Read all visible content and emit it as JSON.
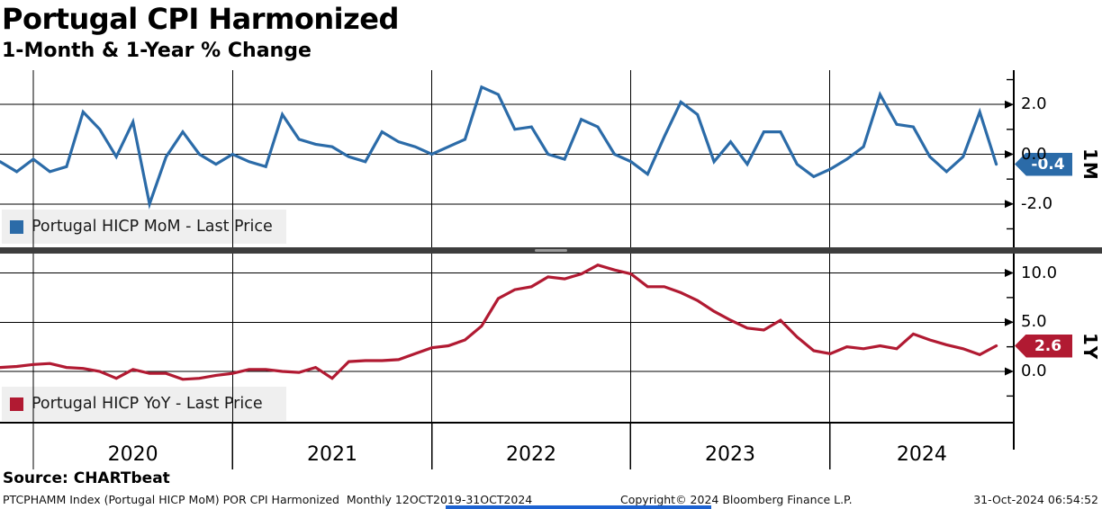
{
  "header": {
    "title": "Portugal CPI Harmonized",
    "subtitle": "1-Month & 1-Year % Change"
  },
  "colors": {
    "mom_series": "#2b6ba8",
    "yoy_series": "#b11a32",
    "mom_tag_bg": "#2b6ba8",
    "yoy_tag_bg": "#b11a32",
    "legend_bg": "#efefef",
    "separator": "#3d3d3d",
    "grid": "#000000",
    "bottom_accent": "#1c62d1"
  },
  "chart_data": {
    "type": "line",
    "frequency": "Monthly",
    "date_range": "12OCT2019-31OCT2024",
    "grid": true,
    "legend_position": "bottom-left",
    "x_year_labels": [
      "2020",
      "2021",
      "2022",
      "2023",
      "2024"
    ],
    "months": [
      "Oct 2019",
      "Nov 2019",
      "Dec 2019",
      "Jan 2020",
      "Feb 2020",
      "Mar 2020",
      "Apr 2020",
      "May 2020",
      "Jun 2020",
      "Jul 2020",
      "Aug 2020",
      "Sep 2020",
      "Oct 2020",
      "Nov 2020",
      "Dec 2020",
      "Jan 2021",
      "Feb 2021",
      "Mar 2021",
      "Apr 2021",
      "May 2021",
      "Jun 2021",
      "Jul 2021",
      "Aug 2021",
      "Sep 2021",
      "Oct 2021",
      "Nov 2021",
      "Dec 2021",
      "Jan 2022",
      "Feb 2022",
      "Mar 2022",
      "Apr 2022",
      "May 2022",
      "Jun 2022",
      "Jul 2022",
      "Aug 2022",
      "Sep 2022",
      "Oct 2022",
      "Nov 2022",
      "Dec 2022",
      "Jan 2023",
      "Feb 2023",
      "Mar 2023",
      "Apr 2023",
      "May 2023",
      "Jun 2023",
      "Jul 2023",
      "Aug 2023",
      "Sep 2023",
      "Oct 2023",
      "Nov 2023",
      "Dec 2023",
      "Jan 2024",
      "Feb 2024",
      "Mar 2024",
      "Apr 2024",
      "May 2024",
      "Jun 2024",
      "Jul 2024",
      "Aug 2024",
      "Sep 2024",
      "Oct 2024"
    ],
    "panels": [
      {
        "title": "Portugal HICP MoM - Last Price",
        "panel_label": "1M",
        "last_price": "-0.4",
        "ylim": [
          -3.5,
          3.5
        ],
        "yticks": [
          {
            "value": 2.0,
            "label": "2.0"
          },
          {
            "value": 0.0,
            "label": "0.0"
          },
          {
            "value": -2.0,
            "label": "-2.0"
          }
        ],
        "values": [
          -0.3,
          -0.7,
          -0.2,
          -0.7,
          -0.5,
          1.7,
          1.0,
          -0.1,
          1.3,
          -2.0,
          -0.1,
          0.9,
          0.0,
          -0.4,
          0.0,
          -0.3,
          -0.5,
          1.6,
          0.6,
          0.4,
          0.3,
          -0.1,
          -0.3,
          0.9,
          0.5,
          0.3,
          0.0,
          0.3,
          0.6,
          2.7,
          2.4,
          1.0,
          1.1,
          0.0,
          -0.2,
          1.4,
          1.1,
          0.0,
          -0.3,
          -0.8,
          0.7,
          2.1,
          1.6,
          -0.3,
          0.5,
          -0.4,
          0.9,
          0.9,
          -0.4,
          -0.9,
          -0.6,
          -0.2,
          0.3,
          2.4,
          1.2,
          1.1,
          -0.1,
          -0.7,
          -0.1,
          1.7,
          -0.4
        ]
      },
      {
        "title": "Portugal HICP YoY - Last Price",
        "panel_label": "1Y",
        "last_price": "2.6",
        "ylim": [
          -5.0,
          12.0
        ],
        "yticks": [
          {
            "value": 10.0,
            "label": "10.0"
          },
          {
            "value": 5.0,
            "label": "5.0"
          },
          {
            "value": 0.0,
            "label": "0.0"
          }
        ],
        "values": [
          0.4,
          0.5,
          0.7,
          0.8,
          0.4,
          0.3,
          0.0,
          -0.7,
          0.2,
          -0.2,
          -0.2,
          -0.8,
          -0.7,
          -0.4,
          -0.2,
          0.2,
          0.2,
          0.0,
          -0.1,
          0.4,
          -0.7,
          1.0,
          1.1,
          1.1,
          1.2,
          1.8,
          2.4,
          2.6,
          3.2,
          4.6,
          7.4,
          8.3,
          8.6,
          9.6,
          9.4,
          9.9,
          10.8,
          10.3,
          9.9,
          8.6,
          8.6,
          8.0,
          7.2,
          6.1,
          5.2,
          4.4,
          4.2,
          5.2,
          3.5,
          2.1,
          1.8,
          2.5,
          2.3,
          2.6,
          2.3,
          3.8,
          3.2,
          2.7,
          2.3,
          1.7,
          2.6
        ]
      }
    ]
  },
  "footer": {
    "source": "Source: CHARTbeat",
    "description": "PTCPHAMM Index (Portugal HICP MoM) POR CPI Harmonized  Monthly 12OCT2019-31OCT2024",
    "copyright": "Copyright© 2024 Bloomberg Finance L.P.",
    "timestamp": "31-Oct-2024 06:54:52"
  }
}
